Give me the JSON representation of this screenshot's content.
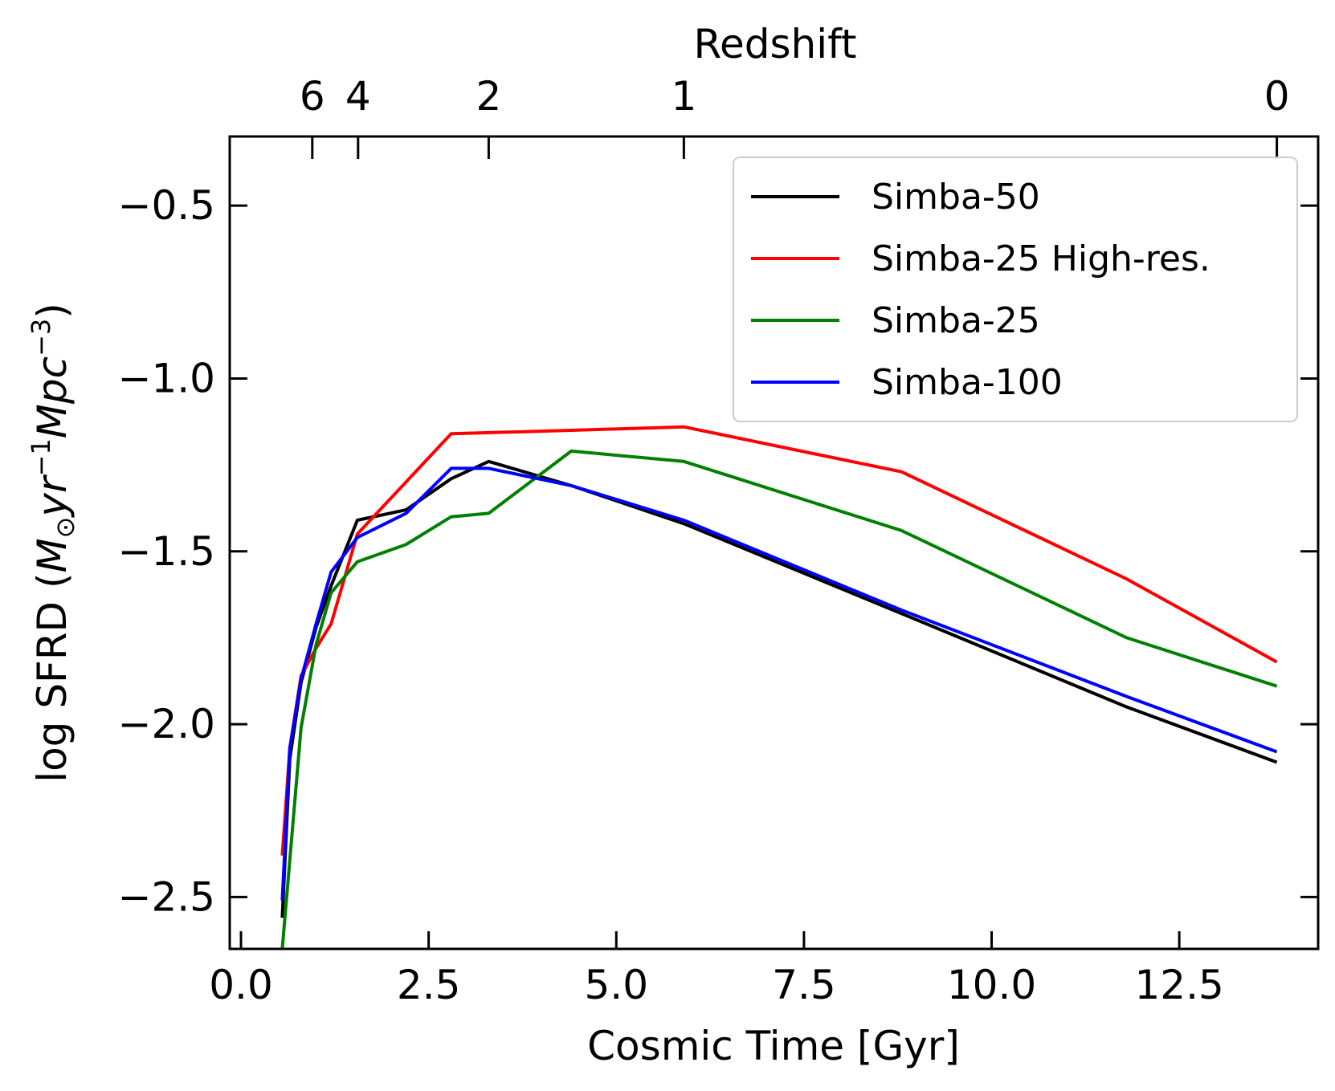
{
  "chart_data": {
    "type": "line",
    "title": "",
    "xlabel": "Cosmic Time [Gyr]",
    "ylabel_prefix": "log SFRD (",
    "ylabel_M": "M",
    "ylabel_sun": "⊙",
    "ylabel_y": "yr",
    "ylabel_exp1": "−1",
    "ylabel_Mpc": "Mpc",
    "ylabel_exp3": "−3",
    "ylabel_suffix": ")",
    "top_xlabel": "Redshift",
    "xlim": [
      -0.15,
      14.35
    ],
    "ylim": [
      -2.65,
      -0.3
    ],
    "x_ticks": [
      {
        "value": 0.0,
        "label": "0.0"
      },
      {
        "value": 2.5,
        "label": "2.5"
      },
      {
        "value": 5.0,
        "label": "5.0"
      },
      {
        "value": 7.5,
        "label": "7.5"
      },
      {
        "value": 10.0,
        "label": "10.0"
      },
      {
        "value": 12.5,
        "label": "12.5"
      }
    ],
    "y_ticks": [
      {
        "value": -0.5,
        "label": "−0.5"
      },
      {
        "value": -1.0,
        "label": "−1.0"
      },
      {
        "value": -1.5,
        "label": "−1.5"
      },
      {
        "value": -2.0,
        "label": "−2.0"
      },
      {
        "value": -2.5,
        "label": "−2.5"
      }
    ],
    "top_ticks": [
      {
        "time": 0.95,
        "label": "6"
      },
      {
        "time": 1.56,
        "label": "4"
      },
      {
        "time": 3.3,
        "label": "2"
      },
      {
        "time": 5.9,
        "label": "1"
      },
      {
        "time": 13.8,
        "label": "0"
      }
    ],
    "legend_position": "top-right",
    "series": [
      {
        "name": "Simba-50",
        "color": "#000000",
        "x": [
          0.55,
          0.65,
          0.8,
          1.0,
          1.2,
          1.55,
          2.2,
          2.8,
          3.3,
          4.4,
          5.9,
          8.8,
          11.8,
          13.8
        ],
        "y": [
          -2.56,
          -2.1,
          -1.88,
          -1.72,
          -1.6,
          -1.41,
          -1.38,
          -1.29,
          -1.24,
          -1.31,
          -1.42,
          -1.68,
          -1.95,
          -2.11
        ]
      },
      {
        "name": "Simba-25 High-res.",
        "color": "#ff0000",
        "x": [
          0.55,
          0.65,
          0.8,
          1.0,
          1.2,
          1.55,
          2.8,
          4.4,
          5.9,
          8.8,
          11.8,
          13.8
        ],
        "y": [
          -2.38,
          -2.07,
          -1.86,
          -1.78,
          -1.71,
          -1.45,
          -1.16,
          -1.15,
          -1.14,
          -1.27,
          -1.58,
          -1.82
        ]
      },
      {
        "name": "Simba-25",
        "color": "#008000",
        "x": [
          0.55,
          0.8,
          1.0,
          1.2,
          1.55,
          2.2,
          2.8,
          3.3,
          4.4,
          5.9,
          8.8,
          11.8,
          13.8
        ],
        "y": [
          -2.65,
          -2.01,
          -1.77,
          -1.62,
          -1.53,
          -1.48,
          -1.4,
          -1.39,
          -1.21,
          -1.24,
          -1.44,
          -1.75,
          -1.89
        ]
      },
      {
        "name": "Simba-100",
        "color": "#0000ff",
        "x": [
          0.55,
          0.65,
          0.8,
          1.0,
          1.2,
          1.55,
          2.2,
          2.8,
          3.3,
          4.4,
          5.9,
          8.8,
          11.8,
          13.8
        ],
        "y": [
          -2.51,
          -2.07,
          -1.87,
          -1.71,
          -1.56,
          -1.46,
          -1.39,
          -1.26,
          -1.26,
          -1.31,
          -1.41,
          -1.67,
          -1.92,
          -2.08
        ]
      }
    ]
  }
}
